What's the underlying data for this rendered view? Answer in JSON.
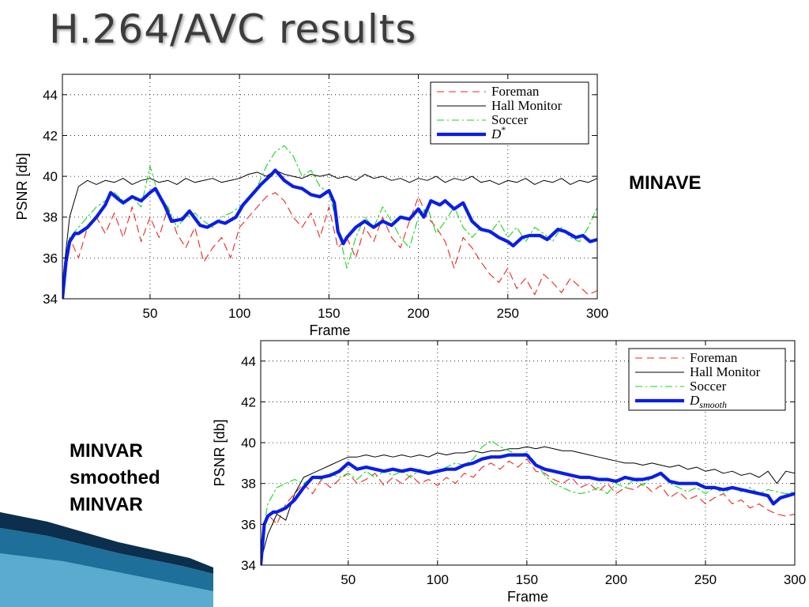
{
  "slide": {
    "title": "H.264/AVC results",
    "label_minave": "MINAVE",
    "label_minvar": [
      "MINVAR",
      "smoothed",
      "MINVAR"
    ]
  },
  "colors": {
    "foreman": "#e8281f",
    "hall_monitor": "#000000",
    "soccer": "#19d619",
    "d": "#0a1ee6",
    "deco_dark": "#0b2f4d",
    "deco_mid": "#1e6f99",
    "deco_light": "#6fbfdf"
  },
  "chart_data": [
    {
      "type": "line",
      "xlabel": "Frame",
      "ylabel": "PSNR [db]",
      "xlim": [
        1,
        300
      ],
      "ylim": [
        34,
        45
      ],
      "xticks": [
        50,
        100,
        150,
        200,
        250,
        300
      ],
      "yticks": [
        34,
        36,
        38,
        40,
        42,
        44
      ],
      "grid": true,
      "legend_position": "top-right",
      "series": [
        {
          "name": "Foreman",
          "style": "dashed",
          "color": "#e8281f",
          "x": [
            1,
            5,
            10,
            15,
            20,
            25,
            30,
            35,
            40,
            45,
            50,
            55,
            60,
            65,
            70,
            75,
            80,
            85,
            90,
            95,
            100,
            105,
            110,
            115,
            120,
            125,
            130,
            135,
            140,
            145,
            150,
            155,
            160,
            165,
            170,
            175,
            180,
            185,
            190,
            195,
            200,
            205,
            210,
            215,
            220,
            225,
            230,
            235,
            240,
            245,
            250,
            255,
            260,
            265,
            270,
            275,
            280,
            285,
            290,
            295,
            300
          ],
          "y": [
            34.5,
            37.0,
            36.0,
            37.5,
            38.0,
            37.2,
            38.2,
            37.0,
            38.5,
            36.8,
            38.0,
            37.0,
            38.5,
            37.2,
            36.5,
            37.5,
            35.8,
            36.5,
            37.0,
            36.0,
            37.5,
            38.0,
            38.5,
            39.0,
            39.2,
            38.8,
            38.0,
            37.5,
            38.2,
            37.0,
            38.5,
            36.5,
            37.0,
            36.0,
            37.5,
            36.8,
            38.0,
            37.0,
            36.5,
            37.8,
            39.0,
            38.0,
            37.5,
            36.8,
            35.5,
            37.0,
            36.5,
            35.8,
            35.2,
            34.8,
            35.5,
            34.5,
            35.0,
            34.2,
            35.2,
            34.8,
            34.3,
            35.0,
            34.6,
            34.2,
            34.4
          ]
        },
        {
          "name": "Hall Monitor",
          "style": "solid",
          "color": "#000000",
          "x": [
            1,
            5,
            10,
            15,
            20,
            25,
            30,
            35,
            40,
            45,
            50,
            55,
            60,
            65,
            70,
            75,
            80,
            85,
            90,
            95,
            100,
            105,
            110,
            115,
            120,
            125,
            130,
            135,
            140,
            145,
            150,
            155,
            160,
            165,
            170,
            175,
            180,
            185,
            190,
            195,
            200,
            205,
            210,
            215,
            220,
            225,
            230,
            235,
            240,
            245,
            250,
            255,
            260,
            265,
            270,
            275,
            280,
            285,
            290,
            295,
            300
          ],
          "y": [
            34.8,
            38.0,
            39.5,
            39.8,
            39.6,
            39.8,
            39.7,
            39.9,
            39.6,
            39.8,
            39.9,
            39.7,
            39.8,
            39.6,
            39.9,
            39.7,
            39.8,
            39.9,
            39.7,
            39.8,
            39.9,
            40.1,
            40.2,
            40.0,
            40.3,
            40.1,
            40.0,
            39.9,
            40.1,
            40.0,
            40.1,
            39.9,
            40.0,
            39.8,
            40.1,
            39.9,
            40.0,
            39.8,
            39.9,
            39.7,
            39.9,
            39.8,
            40.0,
            39.7,
            39.9,
            39.8,
            40.0,
            39.7,
            39.8,
            39.6,
            39.8,
            39.7,
            39.9,
            39.6,
            39.8,
            39.7,
            39.9,
            39.6,
            39.8,
            39.7,
            39.9
          ]
        },
        {
          "name": "Soccer",
          "style": "dashdot",
          "color": "#19d619",
          "x": [
            1,
            5,
            10,
            15,
            20,
            25,
            30,
            35,
            40,
            45,
            50,
            55,
            60,
            65,
            70,
            75,
            80,
            85,
            90,
            95,
            100,
            105,
            110,
            115,
            120,
            125,
            130,
            135,
            140,
            145,
            150,
            155,
            160,
            165,
            170,
            175,
            180,
            185,
            190,
            195,
            200,
            205,
            210,
            215,
            220,
            225,
            230,
            235,
            240,
            245,
            250,
            255,
            260,
            265,
            270,
            275,
            280,
            285,
            290,
            295,
            300
          ],
          "y": [
            35.0,
            37.0,
            37.5,
            38.0,
            38.5,
            38.8,
            39.2,
            38.8,
            39.0,
            38.5,
            40.5,
            39.0,
            38.5,
            37.5,
            38.0,
            38.2,
            37.8,
            37.5,
            38.0,
            38.2,
            38.5,
            39.0,
            39.5,
            40.5,
            41.2,
            41.5,
            41.0,
            40.0,
            40.3,
            39.5,
            39.2,
            37.5,
            35.5,
            37.0,
            38.0,
            37.5,
            38.5,
            37.8,
            37.0,
            36.5,
            38.0,
            38.5,
            37.2,
            37.8,
            38.5,
            37.5,
            37.0,
            37.5,
            37.2,
            37.8,
            37.0,
            37.5,
            36.8,
            37.5,
            37.2,
            36.8,
            37.5,
            37.0,
            36.8,
            37.5,
            38.5
          ]
        },
        {
          "name": "D*",
          "style": "solid-thick",
          "color": "#0a1ee6",
          "x": [
            1,
            3,
            5,
            8,
            10,
            15,
            20,
            25,
            28,
            32,
            35,
            40,
            45,
            50,
            53,
            58,
            62,
            68,
            72,
            78,
            82,
            88,
            92,
            98,
            102,
            108,
            112,
            118,
            120,
            125,
            130,
            135,
            140,
            145,
            150,
            153,
            155,
            158,
            160,
            165,
            170,
            175,
            180,
            185,
            190,
            195,
            200,
            203,
            207,
            212,
            215,
            220,
            225,
            230,
            235,
            240,
            245,
            250,
            253,
            258,
            262,
            268,
            272,
            278,
            282,
            288,
            292,
            296,
            300
          ],
          "y": [
            34.0,
            35.8,
            36.8,
            37.2,
            37.2,
            37.5,
            38.0,
            38.6,
            39.2,
            38.9,
            38.7,
            39.0,
            38.8,
            39.2,
            39.4,
            38.6,
            37.8,
            37.9,
            38.3,
            37.6,
            37.5,
            37.8,
            37.7,
            38.0,
            38.6,
            39.2,
            39.6,
            40.1,
            40.3,
            39.8,
            39.5,
            39.4,
            39.1,
            39.0,
            39.3,
            38.7,
            37.3,
            36.7,
            37.0,
            37.5,
            37.8,
            37.5,
            37.8,
            37.6,
            38.0,
            37.9,
            38.4,
            38.0,
            38.8,
            38.6,
            38.8,
            38.4,
            38.7,
            37.8,
            37.4,
            37.3,
            37.0,
            36.8,
            36.6,
            37.0,
            37.1,
            37.1,
            36.9,
            37.4,
            37.3,
            37.0,
            37.1,
            36.8,
            36.9
          ]
        }
      ]
    },
    {
      "type": "line",
      "xlabel": "Frame",
      "ylabel": "PSNR [db]",
      "xlim": [
        1,
        300
      ],
      "ylim": [
        34,
        45
      ],
      "xticks": [
        50,
        100,
        150,
        200,
        250,
        300
      ],
      "yticks": [
        34,
        36,
        38,
        40,
        42,
        44
      ],
      "grid": true,
      "legend_position": "top-right",
      "series": [
        {
          "name": "Foreman",
          "style": "dashed",
          "color": "#e8281f",
          "x": [
            1,
            5,
            10,
            15,
            20,
            25,
            30,
            35,
            40,
            45,
            50,
            55,
            60,
            65,
            70,
            75,
            80,
            85,
            90,
            95,
            100,
            105,
            110,
            115,
            120,
            125,
            130,
            135,
            140,
            145,
            150,
            155,
            160,
            165,
            170,
            175,
            180,
            185,
            190,
            195,
            200,
            205,
            210,
            215,
            220,
            225,
            230,
            235,
            240,
            245,
            250,
            255,
            260,
            265,
            270,
            275,
            280,
            285,
            290,
            295,
            300
          ],
          "y": [
            35.0,
            36.5,
            36.0,
            37.0,
            37.5,
            38.0,
            37.5,
            38.2,
            37.8,
            38.2,
            38.5,
            38.0,
            38.2,
            38.5,
            37.9,
            38.3,
            38.0,
            38.4,
            38.0,
            38.2,
            37.9,
            38.3,
            38.0,
            38.5,
            38.3,
            38.8,
            39.0,
            38.7,
            39.1,
            38.8,
            39.2,
            38.6,
            38.5,
            38.2,
            38.0,
            38.3,
            37.8,
            38.0,
            37.6,
            38.0,
            37.5,
            37.8,
            37.7,
            38.0,
            37.6,
            37.9,
            37.3,
            37.6,
            37.2,
            37.4,
            37.0,
            37.3,
            37.5,
            37.0,
            37.2,
            36.8,
            37.0,
            36.7,
            36.5,
            36.4,
            36.5
          ]
        },
        {
          "name": "Hall Monitor",
          "style": "solid",
          "color": "#000000",
          "x": [
            1,
            5,
            10,
            15,
            20,
            25,
            30,
            35,
            40,
            45,
            50,
            55,
            60,
            65,
            70,
            75,
            80,
            85,
            90,
            95,
            100,
            105,
            110,
            115,
            120,
            125,
            130,
            135,
            140,
            145,
            150,
            155,
            160,
            165,
            170,
            175,
            180,
            185,
            190,
            195,
            200,
            205,
            210,
            215,
            220,
            225,
            230,
            235,
            240,
            245,
            250,
            255,
            260,
            265,
            270,
            275,
            280,
            285,
            290,
            295,
            300
          ],
          "y": [
            34.2,
            35.5,
            36.5,
            36.2,
            37.5,
            38.3,
            38.5,
            38.7,
            38.9,
            39.1,
            39.3,
            39.3,
            39.4,
            39.3,
            39.4,
            39.3,
            39.4,
            39.3,
            39.4,
            39.3,
            39.5,
            39.4,
            39.5,
            39.5,
            39.6,
            39.5,
            39.6,
            39.6,
            39.7,
            39.7,
            39.8,
            39.7,
            39.8,
            39.7,
            39.6,
            39.6,
            39.5,
            39.4,
            39.3,
            39.2,
            39.1,
            39.0,
            39.0,
            38.9,
            39.0,
            38.9,
            38.8,
            38.9,
            38.7,
            38.8,
            38.6,
            38.7,
            38.5,
            38.6,
            38.4,
            38.5,
            38.3,
            38.6,
            38.0,
            38.6,
            38.5
          ]
        },
        {
          "name": "Soccer",
          "style": "dashdot",
          "color": "#19d619",
          "x": [
            1,
            5,
            10,
            15,
            20,
            25,
            30,
            35,
            40,
            45,
            50,
            55,
            60,
            65,
            70,
            75,
            80,
            85,
            90,
            95,
            100,
            105,
            110,
            115,
            120,
            125,
            130,
            135,
            140,
            145,
            150,
            155,
            160,
            165,
            170,
            175,
            180,
            185,
            190,
            195,
            200,
            205,
            210,
            215,
            220,
            225,
            230,
            235,
            240,
            245,
            250,
            255,
            260,
            265,
            270,
            275,
            280,
            285,
            290,
            295,
            300
          ],
          "y": [
            35.0,
            37.0,
            37.8,
            38.0,
            38.2,
            38.0,
            38.3,
            38.2,
            38.5,
            38.3,
            38.5,
            38.2,
            38.6,
            38.3,
            38.6,
            38.4,
            38.6,
            38.3,
            38.7,
            38.4,
            38.6,
            38.8,
            39.0,
            38.9,
            39.2,
            39.8,
            40.1,
            39.8,
            39.6,
            39.4,
            39.5,
            39.0,
            38.4,
            38.0,
            37.8,
            37.6,
            37.5,
            37.6,
            37.8,
            37.5,
            38.0,
            37.8,
            38.2,
            37.9,
            38.3,
            38.5,
            38.0,
            37.8,
            37.6,
            37.8,
            37.5,
            37.8,
            37.5,
            37.8,
            37.6,
            37.8,
            37.5,
            37.7,
            37.6,
            37.5,
            37.6
          ]
        },
        {
          "name": "D_smooth",
          "style": "solid-thick",
          "color": "#0a1ee6",
          "x": [
            1,
            3,
            5,
            8,
            10,
            15,
            20,
            25,
            30,
            35,
            40,
            45,
            50,
            55,
            60,
            65,
            70,
            75,
            80,
            85,
            90,
            95,
            100,
            105,
            110,
            115,
            120,
            125,
            130,
            135,
            140,
            145,
            150,
            155,
            160,
            165,
            170,
            175,
            180,
            185,
            190,
            195,
            200,
            205,
            210,
            215,
            220,
            225,
            230,
            235,
            240,
            245,
            250,
            255,
            260,
            265,
            270,
            275,
            280,
            285,
            288,
            292,
            296,
            300
          ],
          "y": [
            34.0,
            36.0,
            36.4,
            36.6,
            36.6,
            36.8,
            37.2,
            37.8,
            38.3,
            38.3,
            38.4,
            38.6,
            39.0,
            38.7,
            38.8,
            38.7,
            38.6,
            38.7,
            38.6,
            38.7,
            38.6,
            38.5,
            38.6,
            38.7,
            38.7,
            38.9,
            39.0,
            39.2,
            39.3,
            39.3,
            39.4,
            39.4,
            39.4,
            38.9,
            38.7,
            38.6,
            38.5,
            38.4,
            38.3,
            38.3,
            38.2,
            38.2,
            38.1,
            38.3,
            38.2,
            38.2,
            38.3,
            38.5,
            38.1,
            38.0,
            38.0,
            38.0,
            37.8,
            37.8,
            37.7,
            37.8,
            37.7,
            37.6,
            37.5,
            37.4,
            37.0,
            37.3,
            37.4,
            37.5
          ]
        }
      ]
    }
  ]
}
